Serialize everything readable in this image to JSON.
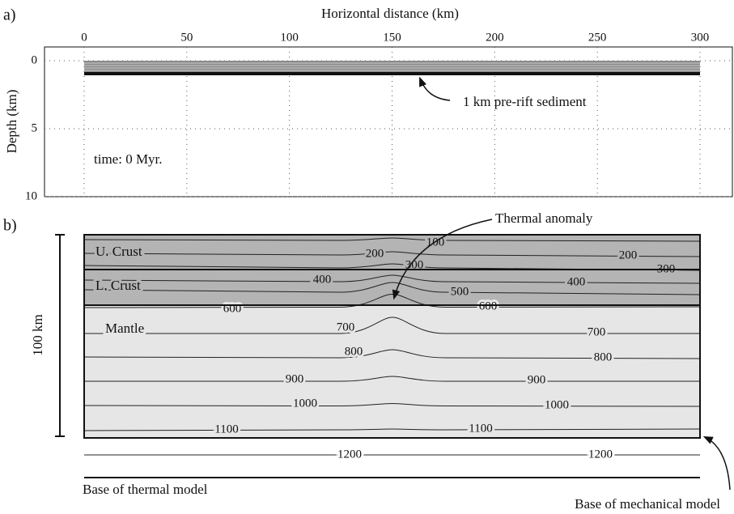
{
  "panel_a": {
    "label": "a)",
    "x_label": "Horizontal distance (km)",
    "y_label": "Depth (km)",
    "xticks": [
      0,
      50,
      100,
      150,
      200,
      250,
      300
    ],
    "yticks": [
      0,
      5,
      10
    ],
    "time": "time: 0 Myr.",
    "annotation": "1 km pre-rift sediment"
  },
  "panel_b": {
    "label": "b)",
    "thermal_anomaly": "Thermal anomaly",
    "upper_crust": "U. Crust",
    "lower_crust": "L. Crust",
    "mantle": "Mantle",
    "scale": "100 km",
    "base_thermal": "Base of thermal model",
    "base_mechanical": "Base of mechanical model",
    "isotherms": [
      100,
      200,
      300,
      400,
      500,
      600,
      700,
      800,
      900,
      1000,
      1100,
      1200
    ]
  }
}
